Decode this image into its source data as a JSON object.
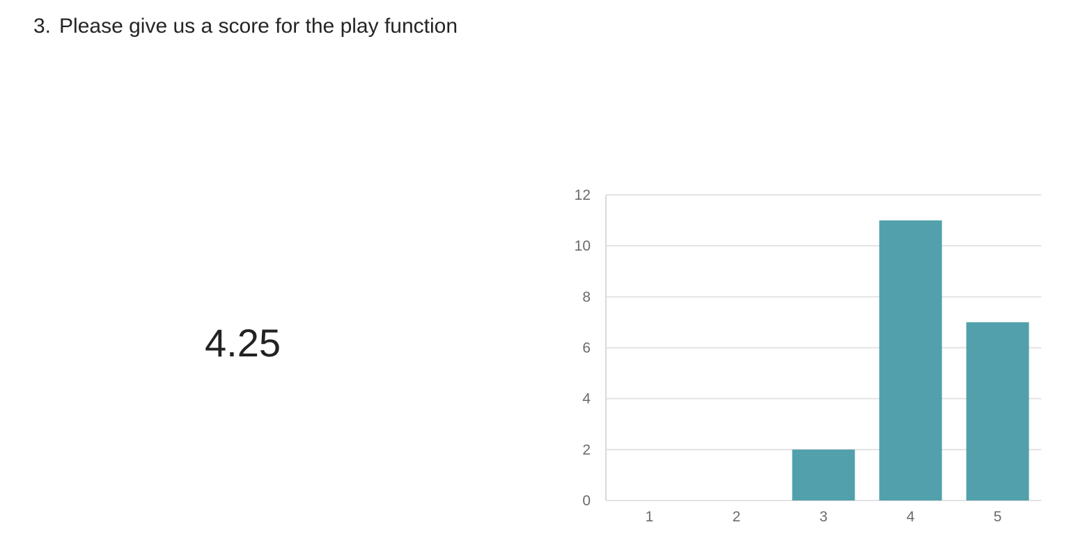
{
  "question": {
    "number": "3.",
    "text": "Please give us a score for the play function"
  },
  "summary": {
    "average": "4.25"
  },
  "chart_data": {
    "type": "bar",
    "categories": [
      "1",
      "2",
      "3",
      "4",
      "5"
    ],
    "values": [
      0,
      0,
      2,
      11,
      7
    ],
    "ylim": [
      0,
      12
    ],
    "yticks": [
      0,
      2,
      4,
      6,
      8,
      10,
      12
    ],
    "grid": true,
    "bar_color": "#52a0ab",
    "grid_color": "#e3e3e3",
    "title": "",
    "xlabel": "",
    "ylabel": ""
  }
}
